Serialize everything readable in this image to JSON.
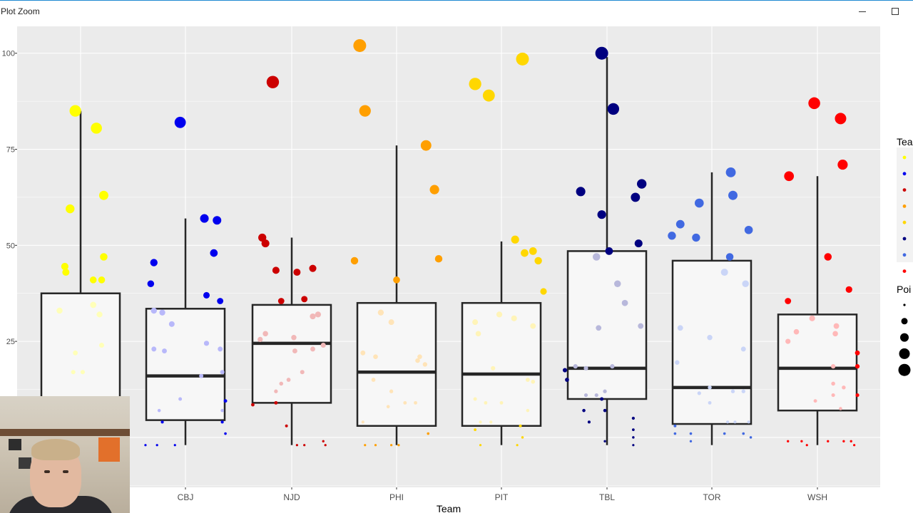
{
  "window": {
    "title": "Plot Zoom"
  },
  "chart_data": {
    "type": "box",
    "title": "",
    "xlabel": "Team",
    "ylabel": "",
    "ylim": [
      -13,
      107
    ],
    "yticks": [
      25,
      50,
      75,
      100
    ],
    "categories": [
      "CBJ",
      "NJD",
      "PHI",
      "PIT",
      "TBL",
      "TOR",
      "WSH"
    ],
    "first_box_color": "#ffff00",
    "boxes": [
      {
        "team": "",
        "min": 2,
        "q1": 2,
        "median": 10,
        "q3": 37.5,
        "max": 85,
        "color": "#ffff00"
      },
      {
        "team": "CBJ",
        "min": -2,
        "q1": 4.5,
        "median": 16,
        "q3": 33.5,
        "max": 57,
        "color": "#0000ee"
      },
      {
        "team": "NJD",
        "min": -2,
        "q1": 9,
        "median": 24.5,
        "q3": 34.5,
        "max": 52,
        "color": "#cc0000"
      },
      {
        "team": "PHI",
        "min": -2,
        "q1": 3,
        "median": 17,
        "q3": 35,
        "max": 76,
        "color": "#ff9f00"
      },
      {
        "team": "PIT",
        "min": -2,
        "q1": 3,
        "median": 16.5,
        "q3": 35,
        "max": 51,
        "color": "#ffd700"
      },
      {
        "team": "TBL",
        "min": -2,
        "q1": 10,
        "median": 18,
        "q3": 48.5,
        "max": 99,
        "color": "#000080"
      },
      {
        "team": "TOR",
        "min": -2,
        "q1": 3.5,
        "median": 13,
        "q3": 46,
        "max": 69,
        "color": "#4169e1"
      },
      {
        "team": "WSH",
        "min": -2,
        "q1": 7,
        "median": 18,
        "q3": 32,
        "max": 68,
        "color": "#ff0000"
      }
    ],
    "points": [
      [
        [
          -0.05,
          85
        ],
        [
          0.15,
          80.5
        ],
        [
          0.22,
          63
        ],
        [
          -0.1,
          59.5
        ],
        [
          0.22,
          47
        ],
        [
          -0.15,
          44.5
        ],
        [
          -0.14,
          43
        ],
        [
          0.12,
          41
        ],
        [
          0.2,
          41
        ],
        [
          -0.2,
          33
        ],
        [
          0.12,
          34.5
        ],
        [
          0.18,
          32
        ],
        [
          0.2,
          24
        ],
        [
          -0.05,
          22
        ],
        [
          -0.07,
          17
        ],
        [
          0.02,
          17
        ]
      ],
      [
        [
          -0.05,
          82
        ],
        [
          0.18,
          57
        ],
        [
          0.3,
          56.5
        ],
        [
          -0.3,
          45.5
        ],
        [
          0.27,
          48
        ],
        [
          -0.33,
          40
        ],
        [
          0.2,
          37
        ],
        [
          0.33,
          35.5
        ],
        [
          -0.3,
          33
        ],
        [
          -0.22,
          32.5
        ],
        [
          -0.13,
          29.5
        ],
        [
          -0.3,
          23
        ],
        [
          -0.2,
          22.5
        ],
        [
          0.2,
          24.5
        ],
        [
          0.33,
          23
        ],
        [
          0.35,
          17
        ],
        [
          0.15,
          16
        ],
        [
          -0.05,
          10
        ],
        [
          -0.25,
          7
        ],
        [
          0.35,
          7
        ],
        [
          -0.22,
          4
        ],
        [
          0.35,
          4
        ],
        [
          0.38,
          1
        ],
        [
          -0.38,
          -2
        ],
        [
          -0.27,
          -2
        ],
        [
          -0.1,
          -2
        ],
        [
          0.38,
          9.5
        ]
      ],
      [
        [
          -0.18,
          92.5
        ],
        [
          -0.28,
          52
        ],
        [
          -0.25,
          50.5
        ],
        [
          -0.15,
          43.5
        ],
        [
          0.05,
          43
        ],
        [
          0.2,
          44
        ],
        [
          -0.1,
          35.5
        ],
        [
          0.12,
          36
        ],
        [
          -0.25,
          27
        ],
        [
          -0.3,
          25.5
        ],
        [
          0.02,
          26
        ],
        [
          0.25,
          32
        ],
        [
          0.2,
          31.5
        ],
        [
          0.3,
          24
        ],
        [
          0.03,
          22.5
        ],
        [
          0.2,
          23
        ],
        [
          -0.03,
          15
        ],
        [
          0.1,
          17
        ],
        [
          -0.1,
          14
        ],
        [
          -0.15,
          12
        ],
        [
          -0.15,
          9
        ],
        [
          -0.37,
          8.5
        ],
        [
          -0.05,
          3
        ],
        [
          0.3,
          -1
        ],
        [
          0.32,
          -2
        ],
        [
          0.12,
          -2
        ],
        [
          0.05,
          -2
        ]
      ],
      [
        [
          -0.35,
          102
        ],
        [
          -0.3,
          85
        ],
        [
          0.28,
          76
        ],
        [
          0.36,
          64.5
        ],
        [
          -0.4,
          46
        ],
        [
          0.4,
          46.5
        ],
        [
          0,
          41
        ],
        [
          -0.15,
          32.5
        ],
        [
          -0.05,
          30
        ],
        [
          -0.32,
          22
        ],
        [
          -0.2,
          21
        ],
        [
          0.22,
          21
        ],
        [
          0.2,
          20
        ],
        [
          0.27,
          19
        ],
        [
          -0.22,
          15
        ],
        [
          -0.05,
          12
        ],
        [
          0.18,
          9
        ],
        [
          -0.08,
          8
        ],
        [
          0.08,
          9
        ],
        [
          -0.32,
          4
        ],
        [
          0.3,
          1
        ],
        [
          -0.3,
          -2
        ],
        [
          -0.05,
          -2
        ],
        [
          0.02,
          -2
        ],
        [
          -0.2,
          -2
        ]
      ],
      [
        [
          -0.25,
          92
        ],
        [
          -0.12,
          89
        ],
        [
          0.2,
          98.5
        ],
        [
          0.13,
          51.5
        ],
        [
          0.22,
          48
        ],
        [
          0.3,
          48.5
        ],
        [
          0.35,
          46
        ],
        [
          0.4,
          38
        ],
        [
          -0.25,
          30
        ],
        [
          -0.22,
          27
        ],
        [
          -0.02,
          32
        ],
        [
          0.12,
          31
        ],
        [
          0.3,
          29
        ],
        [
          -0.08,
          18
        ],
        [
          0.25,
          15
        ],
        [
          -0.25,
          10
        ],
        [
          -0.15,
          9
        ],
        [
          0,
          9
        ],
        [
          0.25,
          7
        ],
        [
          0.3,
          14.5
        ],
        [
          -0.1,
          4
        ],
        [
          -0.2,
          4
        ],
        [
          -0.25,
          2
        ],
        [
          0.18,
          3
        ],
        [
          0.2,
          0
        ],
        [
          0.15,
          -2
        ],
        [
          -0.2,
          -2
        ]
      ],
      [
        [
          -0.05,
          100
        ],
        [
          0.06,
          85.5
        ],
        [
          0.33,
          66
        ],
        [
          -0.25,
          64
        ],
        [
          0.27,
          62.5
        ],
        [
          -0.05,
          58
        ],
        [
          0.3,
          50.5
        ],
        [
          -0.1,
          47
        ],
        [
          0.02,
          48.5
        ],
        [
          0.1,
          40
        ],
        [
          0.17,
          35
        ],
        [
          0.32,
          29
        ],
        [
          -0.08,
          28.5
        ],
        [
          -0.4,
          17.5
        ],
        [
          0.05,
          18.5
        ],
        [
          -0.3,
          18.5
        ],
        [
          -0.2,
          18
        ],
        [
          -0.2,
          11
        ],
        [
          -0.1,
          11
        ],
        [
          -0.02,
          12
        ],
        [
          -0.22,
          7
        ],
        [
          -0.02,
          7
        ],
        [
          0.25,
          5
        ],
        [
          -0.17,
          4
        ],
        [
          0.25,
          2
        ],
        [
          0.25,
          0
        ],
        [
          -0.02,
          -1
        ],
        [
          0.25,
          -2
        ],
        [
          -0.05,
          10
        ],
        [
          -0.38,
          15
        ]
      ],
      [
        [
          0.18,
          69
        ],
        [
          0.2,
          63
        ],
        [
          -0.12,
          61
        ],
        [
          -0.3,
          55.5
        ],
        [
          0.35,
          54
        ],
        [
          -0.38,
          52.5
        ],
        [
          -0.15,
          52
        ],
        [
          0.17,
          47
        ],
        [
          0.12,
          43
        ],
        [
          0.32,
          40
        ],
        [
          -0.3,
          28.5
        ],
        [
          -0.02,
          26
        ],
        [
          0.3,
          23
        ],
        [
          -0.33,
          19.5
        ],
        [
          -0.02,
          13
        ],
        [
          -0.12,
          11.5
        ],
        [
          -0.02,
          9
        ],
        [
          0.2,
          12
        ],
        [
          0.3,
          12
        ],
        [
          0.22,
          4
        ],
        [
          0.15,
          4
        ],
        [
          0.35,
          4
        ],
        [
          -0.35,
          3
        ],
        [
          -0.35,
          1
        ],
        [
          0.12,
          1
        ],
        [
          0.3,
          1
        ],
        [
          -0.2,
          1
        ],
        [
          -0.2,
          -1
        ],
        [
          0.37,
          0
        ]
      ],
      [
        [
          -0.03,
          87
        ],
        [
          0.22,
          83
        ],
        [
          0.24,
          71
        ],
        [
          -0.27,
          68
        ],
        [
          0.1,
          47
        ],
        [
          0.3,
          38.5
        ],
        [
          -0.28,
          35.5
        ],
        [
          -0.05,
          31
        ],
        [
          0.18,
          29
        ],
        [
          0.17,
          27
        ],
        [
          -0.2,
          27.5
        ],
        [
          -0.28,
          25
        ],
        [
          0.38,
          22
        ],
        [
          0.15,
          18.5
        ],
        [
          0.38,
          18.5
        ],
        [
          0.15,
          14
        ],
        [
          0.25,
          13
        ],
        [
          0.15,
          11
        ],
        [
          -0.02,
          9.5
        ],
        [
          0.22,
          7.5
        ],
        [
          0.38,
          11
        ],
        [
          -0.28,
          -1
        ],
        [
          -0.15,
          -1
        ],
        [
          -0.1,
          -2
        ],
        [
          0.1,
          -1
        ],
        [
          0.25,
          -1
        ],
        [
          0.32,
          -1
        ],
        [
          0.35,
          -2
        ]
      ]
    ]
  }
}
